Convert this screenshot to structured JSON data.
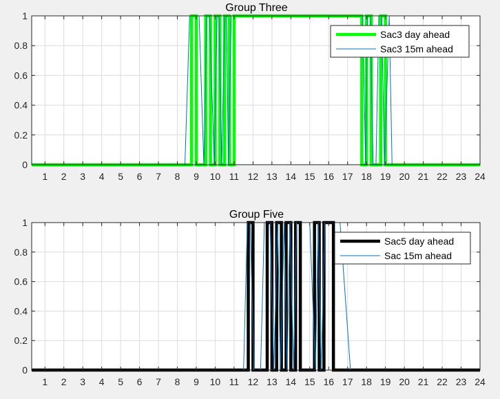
{
  "chart_data": [
    {
      "type": "line",
      "title": "Group Three",
      "xlim": [
        0.3,
        24
      ],
      "ylim": [
        0,
        1
      ],
      "xticks": [
        1,
        2,
        3,
        4,
        5,
        6,
        7,
        8,
        9,
        10,
        11,
        12,
        13,
        14,
        15,
        16,
        17,
        18,
        19,
        20,
        21,
        22,
        23,
        24
      ],
      "yticks": [
        0,
        0.2,
        0.4,
        0.6,
        0.8,
        1
      ],
      "ytick_labels": [
        "0",
        "0.2",
        "0.4",
        "0.6",
        "0.8",
        "1"
      ],
      "grid": true,
      "legend_location": "top-right",
      "series": [
        {
          "name": "Sac3 day ahead",
          "color": "#00ff00",
          "style": "thick-step",
          "x": [
            0.3,
            8.75,
            8.75,
            9.0,
            9.0,
            9.5,
            9.5,
            9.75,
            9.75,
            10.0,
            10.0,
            10.25,
            10.25,
            10.5,
            10.5,
            10.75,
            10.75,
            11.0,
            11.0,
            17.75,
            17.75,
            18.0,
            18.0,
            18.25,
            18.25,
            18.75,
            18.75,
            19.0,
            19.0,
            24.0
          ],
          "y": [
            0,
            0,
            1,
            1,
            0,
            0,
            1,
            1,
            0,
            0,
            1,
            1,
            0,
            0,
            1,
            1,
            0,
            0,
            1,
            1,
            0,
            0,
            1,
            1,
            0,
            0,
            1,
            1,
            0,
            0
          ]
        },
        {
          "name": "Sac3 15m ahead",
          "color": "#0072bd",
          "style": "thin",
          "x": [
            0.3,
            8.4,
            8.65,
            9.15,
            9.4,
            9.55,
            9.7,
            9.95,
            10.1,
            10.2,
            10.35,
            10.5,
            10.6,
            10.7,
            10.85,
            17.8,
            17.95,
            18.05,
            18.2,
            18.35,
            18.5,
            18.65,
            18.8,
            18.95,
            19.2,
            19.35,
            24.0
          ],
          "y": [
            0,
            0,
            1,
            1,
            0,
            1,
            1,
            0,
            1,
            1,
            0,
            1,
            1,
            0,
            1,
            1,
            0,
            1,
            1,
            0,
            0,
            1,
            1,
            0,
            1,
            0,
            0
          ]
        }
      ]
    },
    {
      "type": "line",
      "title": "Group Five",
      "xlim": [
        0.3,
        24
      ],
      "ylim": [
        0,
        1
      ],
      "xticks": [
        1,
        2,
        3,
        4,
        5,
        6,
        7,
        8,
        9,
        10,
        11,
        12,
        13,
        14,
        15,
        16,
        17,
        18,
        19,
        20,
        21,
        22,
        23,
        24
      ],
      "yticks": [
        0,
        0.2,
        0.4,
        0.6,
        0.8,
        1
      ],
      "ytick_labels": [
        "0",
        "0.2",
        "0.4",
        "0.6",
        "0.8",
        "1"
      ],
      "grid": true,
      "legend_location": "top-right",
      "series": [
        {
          "name": "Sac5 day ahead",
          "color": "#000000",
          "style": "thick-step",
          "x": [
            0.3,
            11.75,
            11.75,
            12.0,
            12.0,
            12.75,
            12.75,
            13.0,
            13.0,
            13.25,
            13.25,
            13.5,
            13.5,
            13.75,
            13.75,
            14.0,
            14.0,
            14.25,
            14.25,
            14.5,
            14.5,
            15.25,
            15.25,
            15.5,
            15.5,
            15.75,
            15.75,
            16.25,
            16.25,
            24.0
          ],
          "y": [
            0,
            0,
            1,
            1,
            0,
            0,
            1,
            1,
            0,
            0,
            1,
            1,
            0,
            0,
            1,
            1,
            0,
            0,
            1,
            1,
            0,
            0,
            1,
            1,
            0,
            0,
            1,
            1,
            0,
            0
          ]
        },
        {
          "name": "Sac 15m ahead",
          "color": "#0072bd",
          "style": "thin",
          "x": [
            0.3,
            11.5,
            11.7,
            11.85,
            12.05,
            12.4,
            12.6,
            12.9,
            13.1,
            13.3,
            13.45,
            13.65,
            13.8,
            13.95,
            14.15,
            14.3,
            14.5,
            15.0,
            15.3,
            15.45,
            15.6,
            15.8,
            16.6,
            17.15,
            24.0
          ],
          "y": [
            0,
            0,
            1,
            1,
            0,
            0,
            1,
            1,
            0,
            1,
            0,
            1,
            0,
            1,
            0,
            1,
            1,
            1,
            0,
            1,
            0,
            1,
            1,
            0,
            0
          ]
        }
      ]
    }
  ]
}
